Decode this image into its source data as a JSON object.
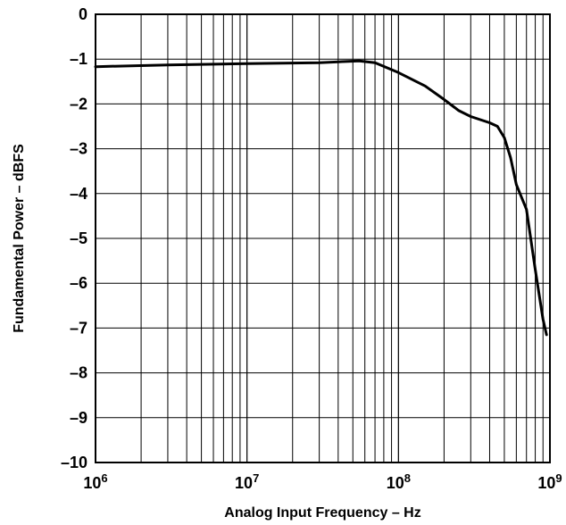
{
  "chart_data": {
    "type": "line",
    "xscale": "log",
    "xlabel": "Analog Input Frequency – Hz",
    "ylabel": "Fundamental Power – dBFS",
    "xlim": [
      1000000,
      1000000000
    ],
    "ylim": [
      -10,
      0
    ],
    "grid": true,
    "x_ticks": [
      {
        "base": "10",
        "exp": "6"
      },
      {
        "base": "10",
        "exp": "7"
      },
      {
        "base": "10",
        "exp": "8"
      },
      {
        "base": "10",
        "exp": "9"
      }
    ],
    "y_ticks": [
      "0",
      "–1",
      "–2",
      "–3",
      "–4",
      "–5",
      "–6",
      "–7",
      "–8",
      "–9",
      "–10"
    ],
    "y_tick_values": [
      0,
      -1,
      -2,
      -3,
      -4,
      -5,
      -6,
      -7,
      -8,
      -9,
      -10
    ],
    "series": [
      {
        "color": "#000000",
        "x": [
          1000000,
          3000000,
          10000000,
          30000000,
          55000000,
          70000000,
          100000000,
          150000000,
          200000000,
          250000000,
          300000000,
          400000000,
          450000000,
          500000000,
          550000000,
          600000000,
          700000000,
          800000000,
          900000000,
          950000000
        ],
        "y": [
          -1.17,
          -1.13,
          -1.1,
          -1.08,
          -1.04,
          -1.08,
          -1.3,
          -1.6,
          -1.9,
          -2.15,
          -2.28,
          -2.42,
          -2.5,
          -2.75,
          -3.2,
          -3.8,
          -4.35,
          -5.7,
          -6.8,
          -7.15
        ]
      }
    ]
  }
}
